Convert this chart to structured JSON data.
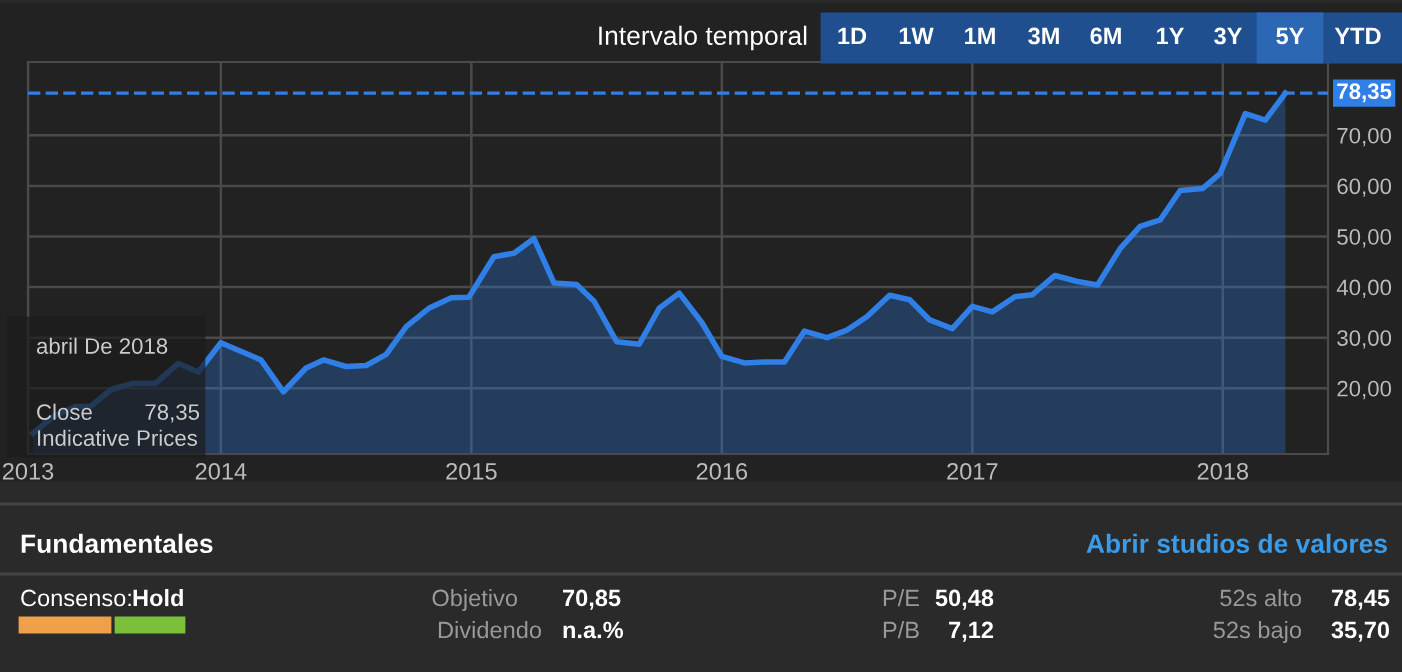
{
  "chart_data": {
    "type": "area",
    "x": [
      2013.25,
      2013.33,
      2013.42,
      2013.48,
      2013.56,
      2013.65,
      2013.74,
      2013.83,
      2013.91,
      2014.0,
      2014.16,
      2014.25,
      2014.34,
      2014.41,
      2014.5,
      2014.58,
      2014.66,
      2014.74,
      2014.83,
      2014.92,
      2014.99,
      2015.09,
      2015.17,
      2015.25,
      2015.33,
      2015.42,
      2015.49,
      2015.58,
      2015.67,
      2015.75,
      2015.83,
      2015.92,
      2016.0,
      2016.09,
      2016.17,
      2016.25,
      2016.33,
      2016.42,
      2016.5,
      2016.58,
      2016.67,
      2016.75,
      2016.83,
      2016.92,
      2017.0,
      2017.08,
      2017.17,
      2017.24,
      2017.33,
      2017.42,
      2017.5,
      2017.59,
      2017.67,
      2017.75,
      2017.83,
      2017.92,
      2017.99,
      2018.09,
      2018.17,
      2018.25
    ],
    "series": [
      {
        "color": "#2f7fe6",
        "values": [
          11.1,
          14.4,
          16.4,
          16.4,
          19.7,
          21.0,
          21.0,
          24.9,
          23.2,
          29.0,
          25.6,
          19.3,
          24.0,
          25.6,
          24.3,
          24.5,
          26.7,
          32.2,
          35.8,
          37.9,
          38.0,
          46.0,
          46.7,
          49.6,
          40.8,
          40.5,
          37.2,
          29.2,
          28.7,
          35.8,
          38.8,
          33.0,
          26.3,
          25.0,
          25.2,
          25.2,
          31.3,
          30.0,
          31.5,
          34.2,
          38.4,
          37.5,
          33.5,
          31.8,
          36.2,
          35.1,
          38.1,
          38.5,
          42.3,
          41.1,
          40.4,
          47.6,
          52.0,
          53.3,
          59.1,
          59.5,
          62.5,
          74.3,
          73.0,
          78.35
        ]
      }
    ],
    "xlim": [
      2013.23,
      2018.42
    ],
    "xticks": [
      {
        "value": 2013.23,
        "label": "2013"
      },
      2014,
      2015,
      2016,
      2017,
      2018
    ],
    "ylim": [
      7,
      84.5
    ],
    "yticks": [
      {
        "value": 20,
        "label": "20,00"
      },
      {
        "value": 30,
        "label": "30,00"
      },
      {
        "value": 40,
        "label": "40,00"
      },
      {
        "value": 50,
        "label": "50,00"
      },
      {
        "value": 60,
        "label": "60,00"
      },
      {
        "value": 70,
        "label": "70,00"
      }
    ],
    "ref_lines": [
      {
        "axis": "y",
        "value": 78.35,
        "label": "78,35",
        "color": "#2f7fe6",
        "line_style": "dashed"
      }
    ],
    "grid": true,
    "annotations": [
      "Intervalo temporal",
      "1D",
      "1W",
      "1M",
      "3M",
      "6M",
      "1Y",
      "3Y",
      "5Y",
      "YTD",
      "abril De 2018",
      "Close",
      "78,35",
      "Indicative Prices",
      "Fundamentales",
      "Abrir studios de valores",
      "Consenso:",
      "Hold",
      "Objetivo",
      "70,85",
      "Dividendo",
      "n.a.%",
      "P/E",
      "50,48",
      "P/B",
      "7,12",
      "52s alto",
      "78,45",
      "52s bajo",
      "35,70"
    ]
  }
}
